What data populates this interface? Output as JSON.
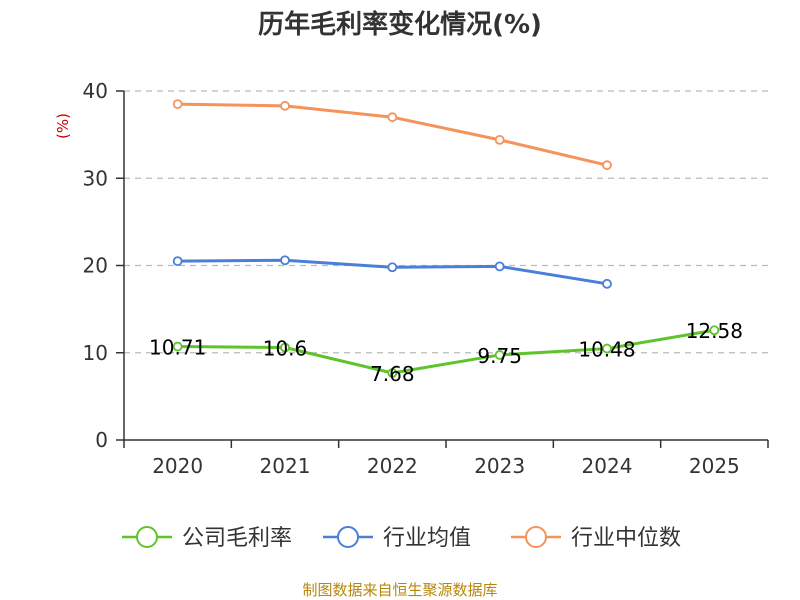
{
  "chart_data": {
    "type": "line",
    "title": "历年毛利率变化情况(%)",
    "ylabel": "(%)",
    "xlabel": "",
    "categories": [
      "2020",
      "2021",
      "2022",
      "2023",
      "2024",
      "2025"
    ],
    "ylim": [
      0,
      40
    ],
    "yticks": [
      0,
      10,
      20,
      30,
      40
    ],
    "grid": true,
    "legend_position": "bottom",
    "series": [
      {
        "name": "公司毛利率",
        "color": "#5fc32c",
        "values": [
          10.71,
          10.6,
          7.68,
          9.75,
          10.48,
          12.58
        ],
        "labels": [
          "10.71",
          "10.6",
          "7.68",
          "9.75",
          "10.48",
          "12.58"
        ],
        "show_labels": true
      },
      {
        "name": "行业均值",
        "color": "#4a7fd9",
        "values": [
          20.5,
          20.6,
          19.8,
          19.9,
          17.9,
          null
        ],
        "show_labels": false
      },
      {
        "name": "行业中位数",
        "color": "#f4935c",
        "values": [
          38.5,
          38.3,
          37.0,
          34.4,
          31.5,
          null
        ],
        "show_labels": false
      }
    ]
  },
  "colors": {
    "ylabel": "#cc0000",
    "source": "#b8860b",
    "grid": "#bbbbbb",
    "axis": "#333333"
  },
  "source_text": "制图数据来自恒生聚源数据库"
}
